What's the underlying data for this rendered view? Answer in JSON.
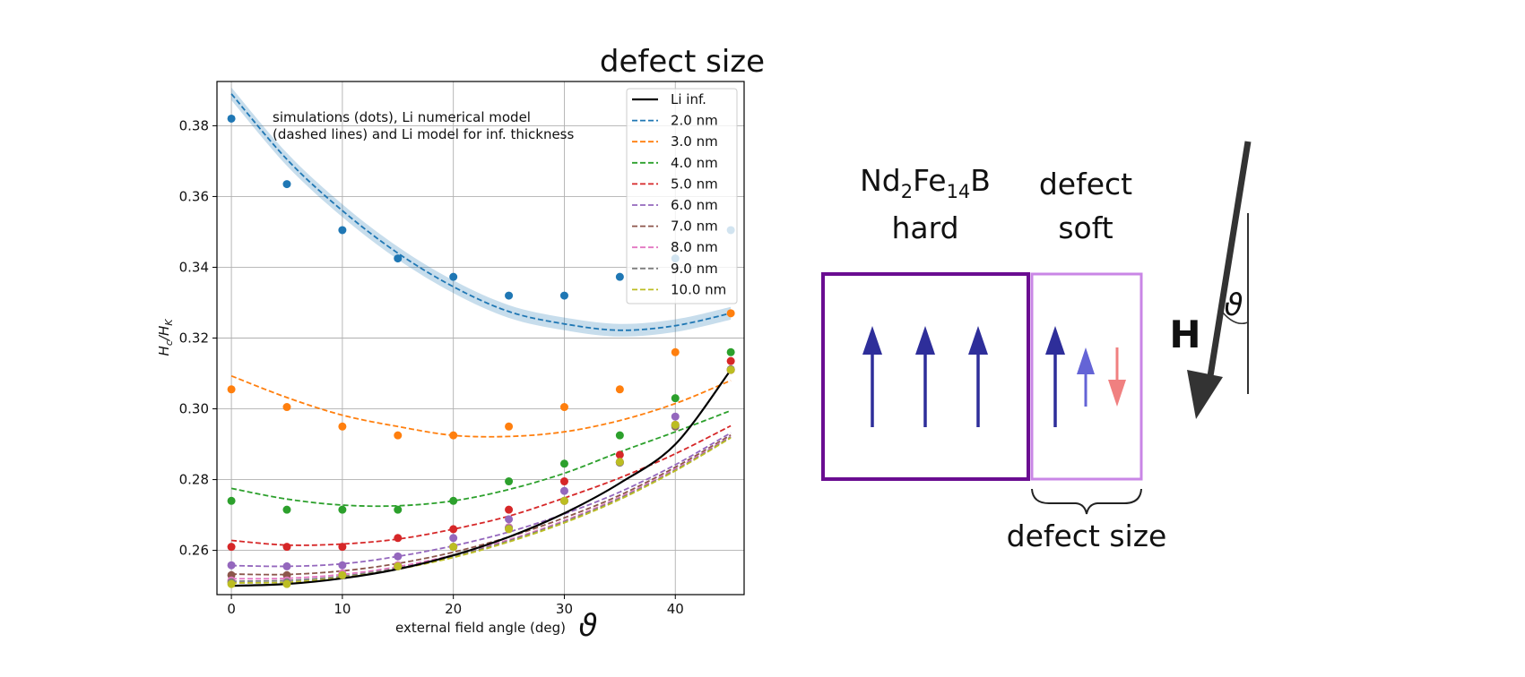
{
  "header": {
    "title": "defect size"
  },
  "chart_data": {
    "type": "scatter",
    "xlabel": "external field angle (deg)",
    "xlabel_symbol": "ϑ",
    "ylabel": "H_c/H_K",
    "xlim": [
      -1.3,
      46.2
    ],
    "ylim": [
      0.2475,
      0.3925
    ],
    "xticks": [
      0,
      10,
      20,
      30,
      40
    ],
    "yticks": [
      0.26,
      0.28,
      0.3,
      0.32,
      0.34,
      0.36,
      0.38
    ],
    "grid": true,
    "annotation": [
      "simulations (dots), Li numerical model",
      "(dashed lines) and Li model for inf. thickness"
    ],
    "legend_position": "upper right",
    "legend": [
      "Li inf.",
      "2.0 nm",
      "3.0 nm",
      "4.0 nm",
      "5.0 nm",
      "6.0 nm",
      "7.0 nm",
      "8.0 nm",
      "9.0 nm",
      "10.0 nm"
    ],
    "x": [
      0,
      5,
      10,
      15,
      20,
      25,
      30,
      35,
      40,
      45
    ],
    "li_inf": {
      "name": "Li inf.",
      "color": "#000000",
      "curve": [
        0.25,
        0.2505,
        0.2521,
        0.2547,
        0.2586,
        0.2638,
        0.2705,
        0.279,
        0.29,
        0.311
      ]
    },
    "series": [
      {
        "name": "2.0 nm",
        "color": "#1f77b4",
        "points": [
          0.382,
          0.3635,
          0.3505,
          0.3425,
          0.3373,
          0.332,
          0.332,
          0.3373,
          0.3425,
          0.3505
        ],
        "curve": [
          0.389,
          0.3705,
          0.356,
          0.344,
          0.3345,
          0.3275,
          0.324,
          0.3222,
          0.3235,
          0.327
        ],
        "band": 0.0018
      },
      {
        "name": "3.0 nm",
        "color": "#ff7f0e",
        "points": [
          0.3055,
          0.3005,
          0.295,
          0.2925,
          0.2925,
          0.295,
          0.3005,
          0.3055,
          0.316,
          0.327
        ],
        "curve": [
          0.3093,
          0.3032,
          0.2982,
          0.295,
          0.2925,
          0.2922,
          0.2935,
          0.2967,
          0.3015,
          0.308
        ]
      },
      {
        "name": "4.0 nm",
        "color": "#2ca02c",
        "points": [
          0.274,
          0.2715,
          0.2715,
          0.2715,
          0.274,
          0.2795,
          0.2845,
          0.2925,
          0.303,
          0.316
        ],
        "curve": [
          0.2775,
          0.2745,
          0.2728,
          0.2726,
          0.274,
          0.2772,
          0.2818,
          0.2878,
          0.2935,
          0.2995
        ]
      },
      {
        "name": "5.0 nm",
        "color": "#d62728",
        "points": [
          0.261,
          0.261,
          0.261,
          0.2635,
          0.266,
          0.2715,
          0.2795,
          0.287,
          0.2955,
          0.3135
        ],
        "curve": [
          0.2628,
          0.2615,
          0.2618,
          0.2632,
          0.266,
          0.2697,
          0.2748,
          0.2805,
          0.2873,
          0.2952
        ]
      },
      {
        "name": "6.0 nm",
        "color": "#9467bd",
        "points": [
          0.2558,
          0.2555,
          0.2558,
          0.2583,
          0.2635,
          0.2688,
          0.2768,
          0.285,
          0.2978,
          0.311
        ],
        "curve": [
          0.2557,
          0.2555,
          0.2562,
          0.2583,
          0.2613,
          0.2652,
          0.2703,
          0.2765,
          0.2842,
          0.2932
        ]
      },
      {
        "name": "7.0 nm",
        "color": "#8c564b",
        "points": [
          0.253,
          0.253,
          0.253,
          0.2558,
          0.261,
          0.2665,
          0.274,
          0.2848,
          0.295,
          0.311
        ],
        "curve": [
          0.2533,
          0.2532,
          0.2542,
          0.2563,
          0.2595,
          0.2638,
          0.2692,
          0.2756,
          0.2835,
          0.2926
        ]
      },
      {
        "name": "8.0 nm",
        "color": "#e377c2",
        "points": [
          0.2515,
          0.2515,
          0.2535,
          0.2558,
          0.261,
          0.2665,
          0.274,
          0.2848,
          0.2955,
          0.311
        ],
        "curve": [
          0.252,
          0.2521,
          0.2532,
          0.2554,
          0.2587,
          0.263,
          0.2684,
          0.275,
          0.283,
          0.2922
        ]
      },
      {
        "name": "9.0 nm",
        "color": "#7f7f7f",
        "points": [
          0.251,
          0.251,
          0.253,
          0.2555,
          0.261,
          0.2662,
          0.274,
          0.2848,
          0.2953,
          0.3112
        ],
        "curve": [
          0.2513,
          0.2515,
          0.2527,
          0.255,
          0.2583,
          0.2627,
          0.2681,
          0.2747,
          0.2827,
          0.292
        ]
      },
      {
        "name": "10.0 nm",
        "color": "#bcbd22",
        "points": [
          0.2505,
          0.2505,
          0.253,
          0.2555,
          0.261,
          0.266,
          0.274,
          0.285,
          0.2955,
          0.311
        ],
        "curve": [
          0.2508,
          0.251,
          0.2523,
          0.2547,
          0.258,
          0.2624,
          0.2678,
          0.2744,
          0.2825,
          0.2918
        ]
      }
    ]
  },
  "diagram": {
    "hard_label_formula": [
      "Nd",
      "2",
      "Fe",
      "14",
      "B"
    ],
    "hard_label": "hard",
    "defect_label": "defect",
    "soft_label": "soft",
    "defect_size_label": "defect size",
    "field_label": "H",
    "angle_label": "ϑ",
    "colors": {
      "hard_border": "#6a0d91",
      "soft_border": "#c986e6",
      "arrow_dark": "#2e2e9a",
      "arrow_mid": "#6464d6",
      "arrow_red": "#f08080",
      "field_arrow": "#333333"
    }
  }
}
